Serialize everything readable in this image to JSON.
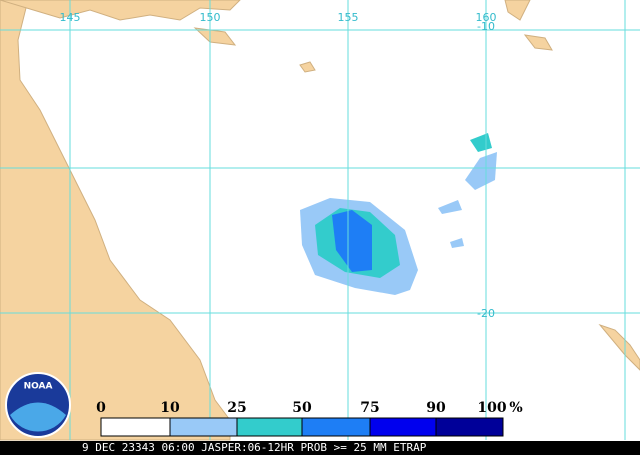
{
  "map": {
    "longitude_labels": [
      "145",
      "150",
      "155",
      "160"
    ],
    "latitude_labels": [
      "-10",
      "-20"
    ],
    "legend": {
      "ticks": [
        "0",
        "10",
        "25",
        "50",
        "75",
        "90",
        "100"
      ],
      "unit": "%"
    },
    "footer": "9 DEC 23343 06:00 JASPER:06-12HR PROB >= 25 MM ETRAP",
    "logo": "NOAA"
  }
}
